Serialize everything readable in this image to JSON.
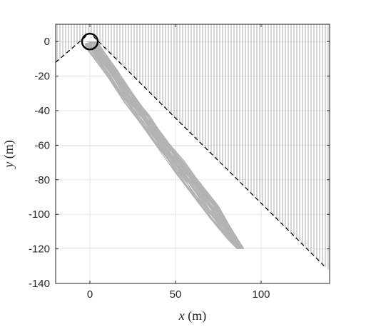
{
  "chart_data": {
    "type": "line",
    "xlabel": {
      "var": "x",
      "unit": " (m)"
    },
    "ylabel": {
      "var": "y",
      "unit": " (m)"
    },
    "xlim": [
      -20,
      140
    ],
    "ylim": [
      -140,
      10
    ],
    "x_ticks": [
      0,
      50,
      100
    ],
    "y_ticks": [
      0,
      -20,
      -40,
      -60,
      -80,
      -100,
      -120,
      -140
    ],
    "grid": true,
    "legend": "none",
    "colors": {
      "trajectories": "#b3b3b3",
      "hatch": "#8c8c8c",
      "boundary": "#000000",
      "axes": "#262626",
      "grid": "#e6e6e6"
    },
    "boundary": {
      "style": "dashed",
      "points": [
        [
          -20,
          -12
        ],
        [
          0,
          5
        ],
        [
          138,
          -131
        ]
      ]
    },
    "hatched_region": "above-boundary",
    "start_marker": {
      "x": 0,
      "y": 0,
      "shape": "circle"
    },
    "trajectory_band": {
      "count": 60,
      "left_edge": [
        [
          -2,
          -4
        ],
        [
          10,
          -20
        ],
        [
          20,
          -35
        ],
        [
          30,
          -48
        ],
        [
          40,
          -62
        ],
        [
          50,
          -76
        ],
        [
          60,
          -89
        ],
        [
          70,
          -102
        ],
        [
          80,
          -114
        ],
        [
          86,
          -120
        ]
      ],
      "right_edge": [
        [
          5,
          -1
        ],
        [
          15,
          -15
        ],
        [
          25,
          -30
        ],
        [
          35,
          -43
        ],
        [
          45,
          -56
        ],
        [
          55,
          -69
        ],
        [
          65,
          -82
        ],
        [
          75,
          -95
        ],
        [
          82,
          -107
        ],
        [
          90,
          -120
        ]
      ]
    }
  }
}
